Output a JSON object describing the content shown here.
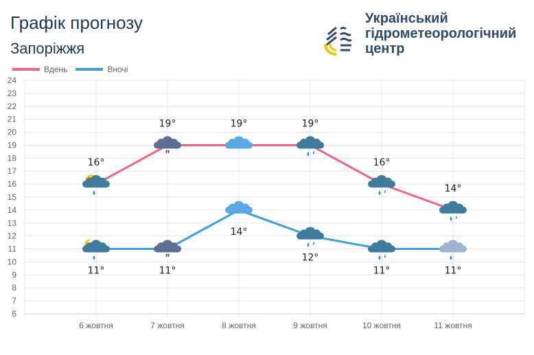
{
  "header": {
    "title": "Графік прогнозу",
    "city": "Запоріжжя",
    "org_line1": "Український",
    "org_line2": "гідрометеорологічний",
    "org_line3": "центр"
  },
  "colors": {
    "day": "#f06383",
    "night": "#3b9fe0"
  },
  "chart_data": {
    "type": "line",
    "title": "Графік прогнозу",
    "categories": [
      "6 жовтня",
      "7 жовтня",
      "8 жовтня",
      "9 жовтня",
      "10 жовтня",
      "11 жовтня"
    ],
    "series": [
      {
        "name": "Вдень",
        "values": [
          16,
          19,
          19,
          19,
          16,
          14
        ],
        "labels": [
          "16°",
          "19°",
          "19°",
          "19°",
          "16°",
          "14°"
        ],
        "icons": [
          "sun-cloud-rain-icon",
          "cloud-drizzle-icon",
          "cloud-icon",
          "cloud-rain-icon",
          "cloud-rain-icon",
          "cloud-rain-icon"
        ]
      },
      {
        "name": "Вночі",
        "values": [
          11,
          11,
          14,
          12,
          11,
          11
        ],
        "labels": [
          "11°",
          "11°",
          "14°",
          "12°",
          "11°",
          "11°"
        ],
        "icons": [
          "moon-cloud-rain-icon",
          "cloud-drizzle-icon",
          "cloud-icon",
          "cloud-rain-icon",
          "cloud-rain-icon",
          "cloud-light-rain-icon"
        ]
      }
    ],
    "ylim": [
      6,
      24
    ],
    "yticks": [
      "6",
      "7",
      "8",
      "9",
      "10",
      "11",
      "12",
      "13",
      "14",
      "15",
      "16",
      "17",
      "18",
      "19",
      "20",
      "21",
      "22",
      "23",
      "24"
    ],
    "grid": true,
    "legend": "top-left"
  }
}
